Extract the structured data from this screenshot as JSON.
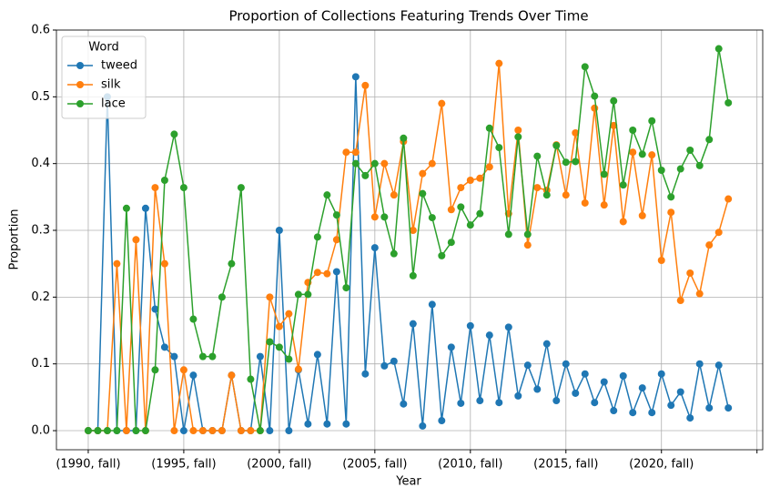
{
  "chart_data": {
    "type": "line",
    "title": "Proportion of Collections Featuring Trends Over Time",
    "x_label": "Year",
    "y_label": "Proportion",
    "legend_title": "Word",
    "legend_position": "upper left",
    "grid": true,
    "categories": [
      "(1990, fall)",
      null,
      null,
      null,
      null,
      null,
      null,
      null,
      null,
      null,
      "(1995, fall)",
      null,
      null,
      null,
      null,
      null,
      null,
      null,
      null,
      null,
      "(2000, fall)",
      null,
      null,
      null,
      null,
      null,
      null,
      null,
      null,
      null,
      "(2005, fall)",
      null,
      null,
      null,
      null,
      null,
      null,
      null,
      null,
      null,
      "(2010, fall)",
      null,
      null,
      null,
      null,
      null,
      null,
      null,
      null,
      null,
      "(2015, fall)",
      null,
      null,
      null,
      null,
      null,
      null,
      null,
      null,
      null,
      "(2020, fall)",
      null,
      null,
      null,
      null,
      null,
      null,
      null
    ],
    "xlim": [
      -3.33,
      70.6
    ],
    "xticks": [
      0,
      10,
      20,
      30,
      40,
      50,
      60,
      70
    ],
    "ylim": [
      -0.0286,
      0.6
    ],
    "yticks": [
      {
        "value": 0,
        "label": "0.0"
      },
      {
        "value": 0.1,
        "label": "0.1"
      },
      {
        "value": 0.2,
        "label": "0.2"
      },
      {
        "value": 0.3,
        "label": "0.3"
      },
      {
        "value": 0.4,
        "label": "0.4"
      },
      {
        "value": 0.5,
        "label": "0.5"
      },
      {
        "value": 0.6,
        "label": "0.6"
      }
    ],
    "series": [
      {
        "name": "tweed",
        "color": "#1f77b4",
        "values": [
          0,
          0,
          0.5,
          0,
          0,
          0,
          0.333,
          0.182,
          0.125,
          0.111,
          0,
          0.083,
          0,
          0,
          0,
          0.083,
          0,
          0,
          0.111,
          0,
          0.3,
          0,
          0.091,
          0.01,
          0.114,
          0.01,
          0.238,
          0.01,
          0.53,
          0.085,
          0.274,
          0.097,
          0.104,
          0.04,
          0.16,
          0.007,
          0.189,
          0.015,
          0.125,
          0.041,
          0.157,
          0.045,
          0.143,
          0.042,
          0.155,
          0.052,
          0.098,
          0.062,
          0.13,
          0.045,
          0.1,
          0.056,
          0.085,
          0.042,
          0.073,
          0.03,
          0.082,
          0.027,
          0.064,
          0.027,
          0.085,
          0.038,
          0.058,
          0.019,
          0.1,
          0.034,
          0.098,
          0.034
        ]
      },
      {
        "name": "silk",
        "color": "#ff7f0e",
        "values": [
          0,
          0,
          0,
          0.25,
          0,
          0.286,
          0,
          0.364,
          0.25,
          0,
          0.091,
          0,
          0,
          0,
          0,
          0.083,
          0,
          0,
          0,
          0.2,
          0.156,
          0.175,
          0.092,
          0.222,
          0.237,
          0.235,
          0.286,
          0.417,
          0.417,
          0.517,
          0.32,
          0.4,
          0.353,
          0.433,
          0.3,
          0.385,
          0.4,
          0.49,
          0.331,
          0.364,
          0.375,
          0.378,
          0.395,
          0.55,
          0.325,
          0.45,
          0.278,
          0.364,
          0.36,
          0.428,
          0.353,
          0.446,
          0.341,
          0.483,
          0.338,
          0.457,
          0.313,
          0.417,
          0.322,
          0.413,
          0.255,
          0.327,
          0.195,
          0.236,
          0.205,
          0.278,
          0.297,
          0.347
        ]
      },
      {
        "name": "lace",
        "color": "#2ca02c",
        "values": [
          0,
          0,
          0,
          0,
          0.333,
          0,
          0,
          0.091,
          0.375,
          0.444,
          0.364,
          0.167,
          0.111,
          0.111,
          0.2,
          0.25,
          0.364,
          0.077,
          0,
          0.133,
          0.125,
          0.107,
          0.204,
          0.204,
          0.29,
          0.353,
          0.323,
          0.214,
          0.4,
          0.382,
          0.4,
          0.32,
          0.265,
          0.438,
          0.232,
          0.355,
          0.319,
          0.262,
          0.282,
          0.335,
          0.308,
          0.325,
          0.453,
          0.424,
          0.294,
          0.44,
          0.294,
          0.411,
          0.353,
          0.427,
          0.402,
          0.403,
          0.545,
          0.501,
          0.384,
          0.494,
          0.368,
          0.45,
          0.414,
          0.464,
          0.39,
          0.35,
          0.392,
          0.42,
          0.397,
          0.436,
          0.572,
          0.491
        ]
      }
    ]
  }
}
